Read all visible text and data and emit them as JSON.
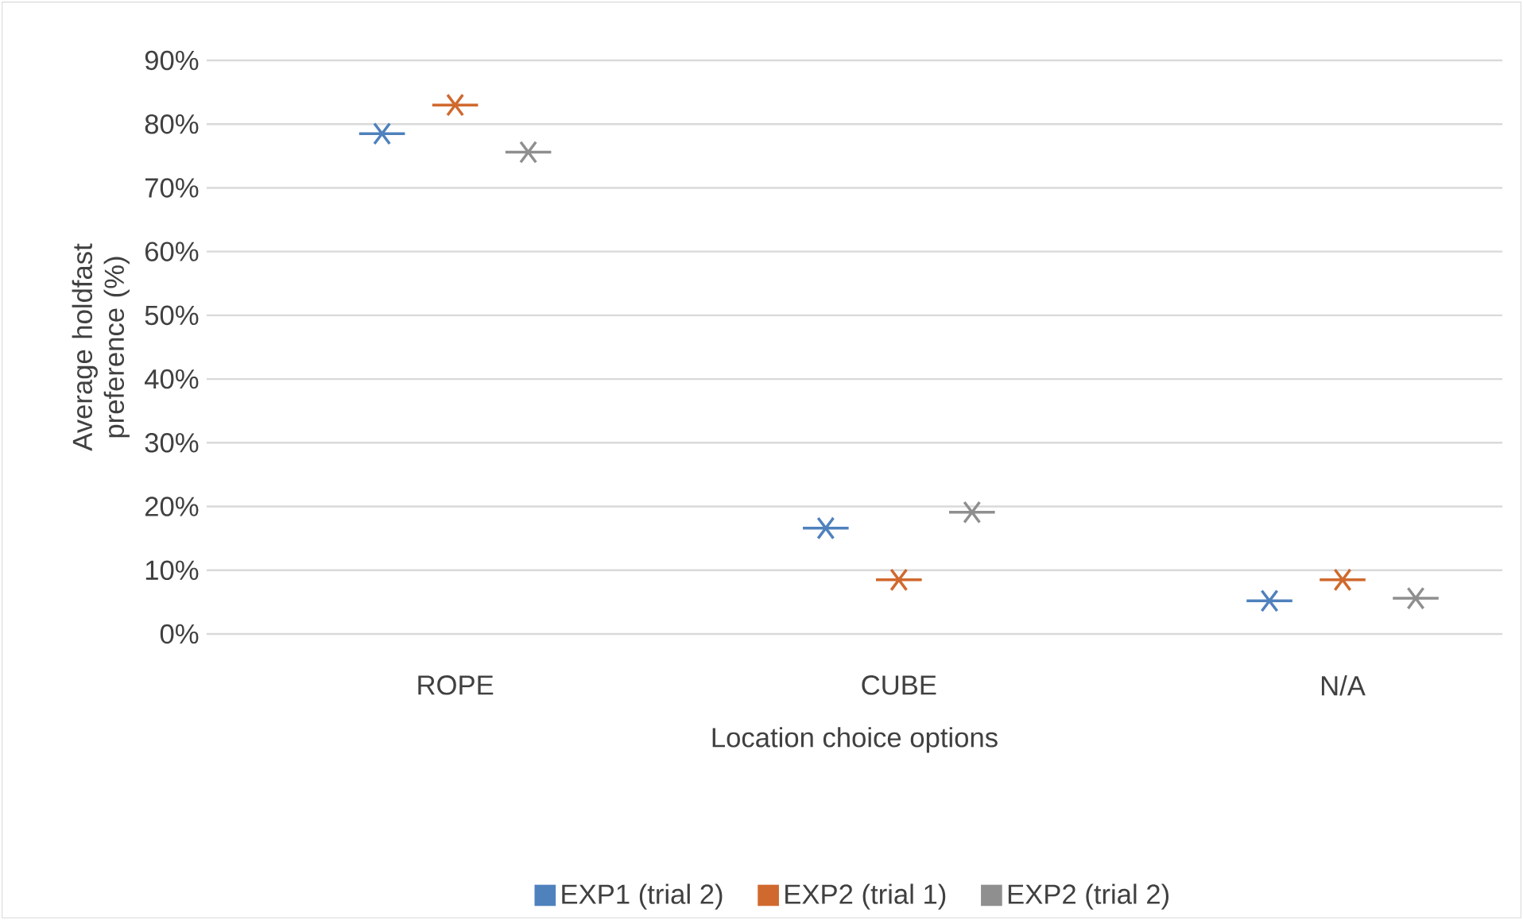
{
  "chart_data": {
    "type": "scatter",
    "xlabel": "Location choice options",
    "ylabel": "Average holdfast preference (%)",
    "categories": [
      "ROPE",
      "CUBE",
      "N/A"
    ],
    "series": [
      {
        "name": "EXP1 (trial 2)",
        "color": "#4f81bd",
        "values": [
          78.5,
          16.6,
          5.2
        ]
      },
      {
        "name": "EXP2 (trial 1)",
        "color": "#d0692e",
        "values": [
          83.0,
          8.5,
          8.5
        ]
      },
      {
        "name": "EXP2 (trial 2)",
        "color": "#8f8f8f",
        "values": [
          75.6,
          19.1,
          5.6
        ]
      }
    ],
    "ylim": [
      0,
      90
    ],
    "yticks": [
      {
        "value": 0,
        "label": "0%"
      },
      {
        "value": 10,
        "label": "10%"
      },
      {
        "value": 20,
        "label": "20%"
      },
      {
        "value": 30,
        "label": "30%"
      },
      {
        "value": 40,
        "label": "40%"
      },
      {
        "value": 50,
        "label": "50%"
      },
      {
        "value": 60,
        "label": "60%"
      },
      {
        "value": 70,
        "label": "70%"
      },
      {
        "value": 80,
        "label": "80%"
      },
      {
        "value": 90,
        "label": "90%"
      }
    ],
    "grid": "y",
    "legend": "bottom",
    "marker": "cross"
  }
}
